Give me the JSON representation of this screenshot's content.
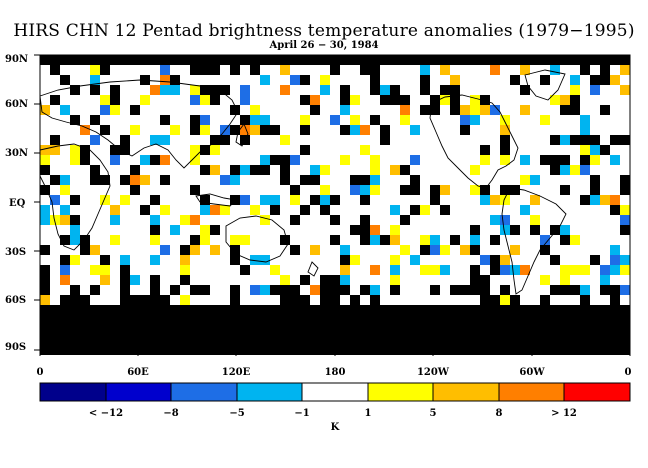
{
  "title": "HIRS CHN 12 Pentad brightness temperature anomalies (1979−1995)",
  "subtitle": "April 26 − 30, 1984",
  "lat_labels": [
    "90N",
    "60N",
    "30N",
    "EQ",
    "30S",
    "60S",
    "90S"
  ],
  "lon_labels": [
    "0",
    "60E",
    "120E",
    "180",
    "120W",
    "60W",
    "0"
  ],
  "colorbar": {
    "unit": "K",
    "labels": [
      "< −12",
      "−8",
      "−5",
      "−1",
      "1",
      "5",
      "8",
      "> 12"
    ],
    "colors": [
      "#00008b",
      "#0000cd",
      "#1e6ee6",
      "#00b4f0",
      "#ffffff",
      "#ffff00",
      "#ffbe00",
      "#ff7f00",
      "#ff0000"
    ]
  },
  "colors": {
    "missing": "#000000",
    "coastline": "#000000"
  }
}
